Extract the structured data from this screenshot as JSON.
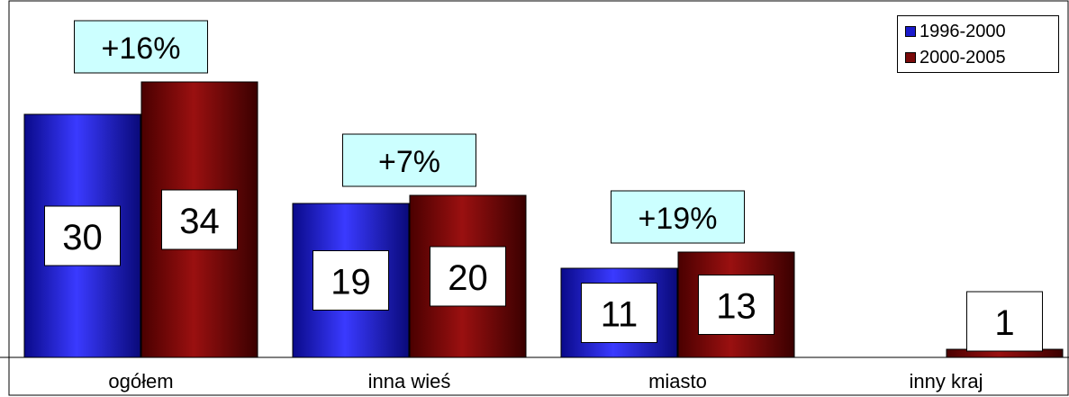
{
  "chart_data": {
    "type": "bar",
    "categories": [
      "ogółem",
      "inna wieś",
      "miasto",
      "inny kraj"
    ],
    "series": [
      {
        "name": "1996-2000",
        "values": [
          30,
          19,
          11,
          null
        ],
        "color": "#1a1acc"
      },
      {
        "name": "2000-2005",
        "values": [
          34,
          20,
          13,
          1
        ],
        "color": "#7a0a0a"
      }
    ],
    "value_labels": [
      [
        "30",
        "19",
        "11",
        ""
      ],
      [
        "34",
        "20",
        "13",
        "1"
      ]
    ],
    "change_labels": [
      "+16%",
      "+7%",
      "+19%",
      ""
    ],
    "change_label_color": "#ccffff",
    "ylim": [
      0,
      40
    ],
    "grid": false,
    "legend_position": "top-right"
  }
}
